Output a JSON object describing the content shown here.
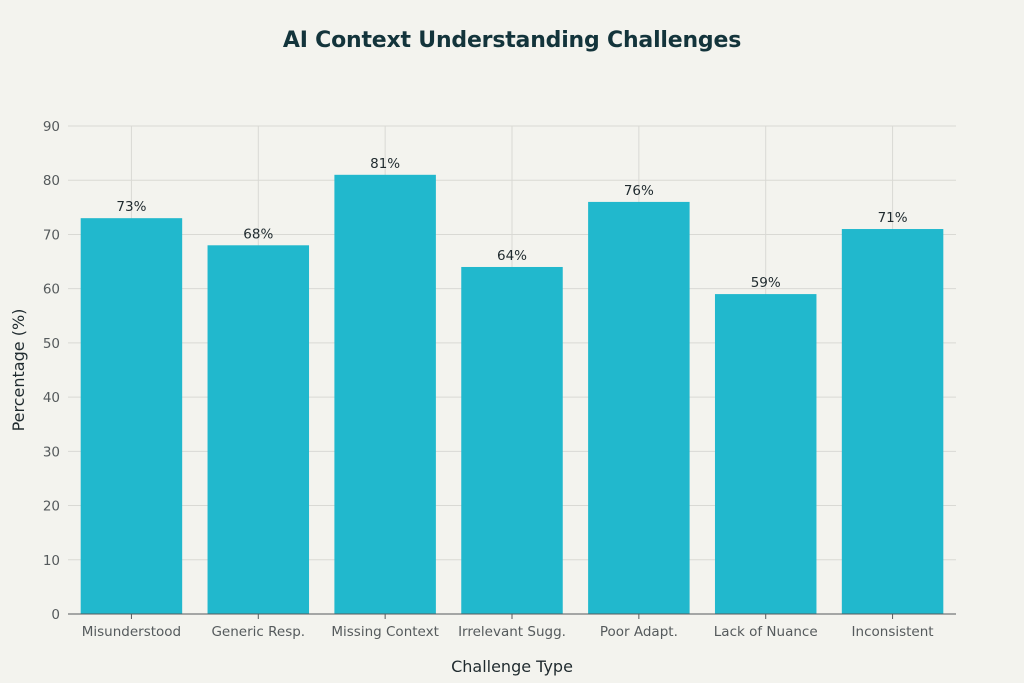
{
  "colors": {
    "background": "#f3f3ee",
    "bar": "#21b8cd",
    "grid": "#d9d9d4",
    "axis": "#555a5c",
    "title": "#13343b"
  },
  "chart_data": {
    "type": "bar",
    "title": "AI Context Understanding Challenges",
    "xlabel": "Challenge Type",
    "ylabel": "Percentage (%)",
    "categories": [
      "Misunderstood",
      "Generic Resp.",
      "Missing Context",
      "Irrelevant Sugg.",
      "Poor Adapt.",
      "Lack of Nuance",
      "Inconsistent"
    ],
    "values": [
      73,
      68,
      81,
      64,
      76,
      59,
      71
    ],
    "data_labels": [
      "73%",
      "68%",
      "81%",
      "64%",
      "76%",
      "59%",
      "71%"
    ],
    "ylim": [
      0,
      90
    ],
    "yticks": [
      0,
      10,
      20,
      30,
      40,
      50,
      60,
      70,
      80,
      90
    ],
    "grid": true,
    "legend": "none"
  }
}
